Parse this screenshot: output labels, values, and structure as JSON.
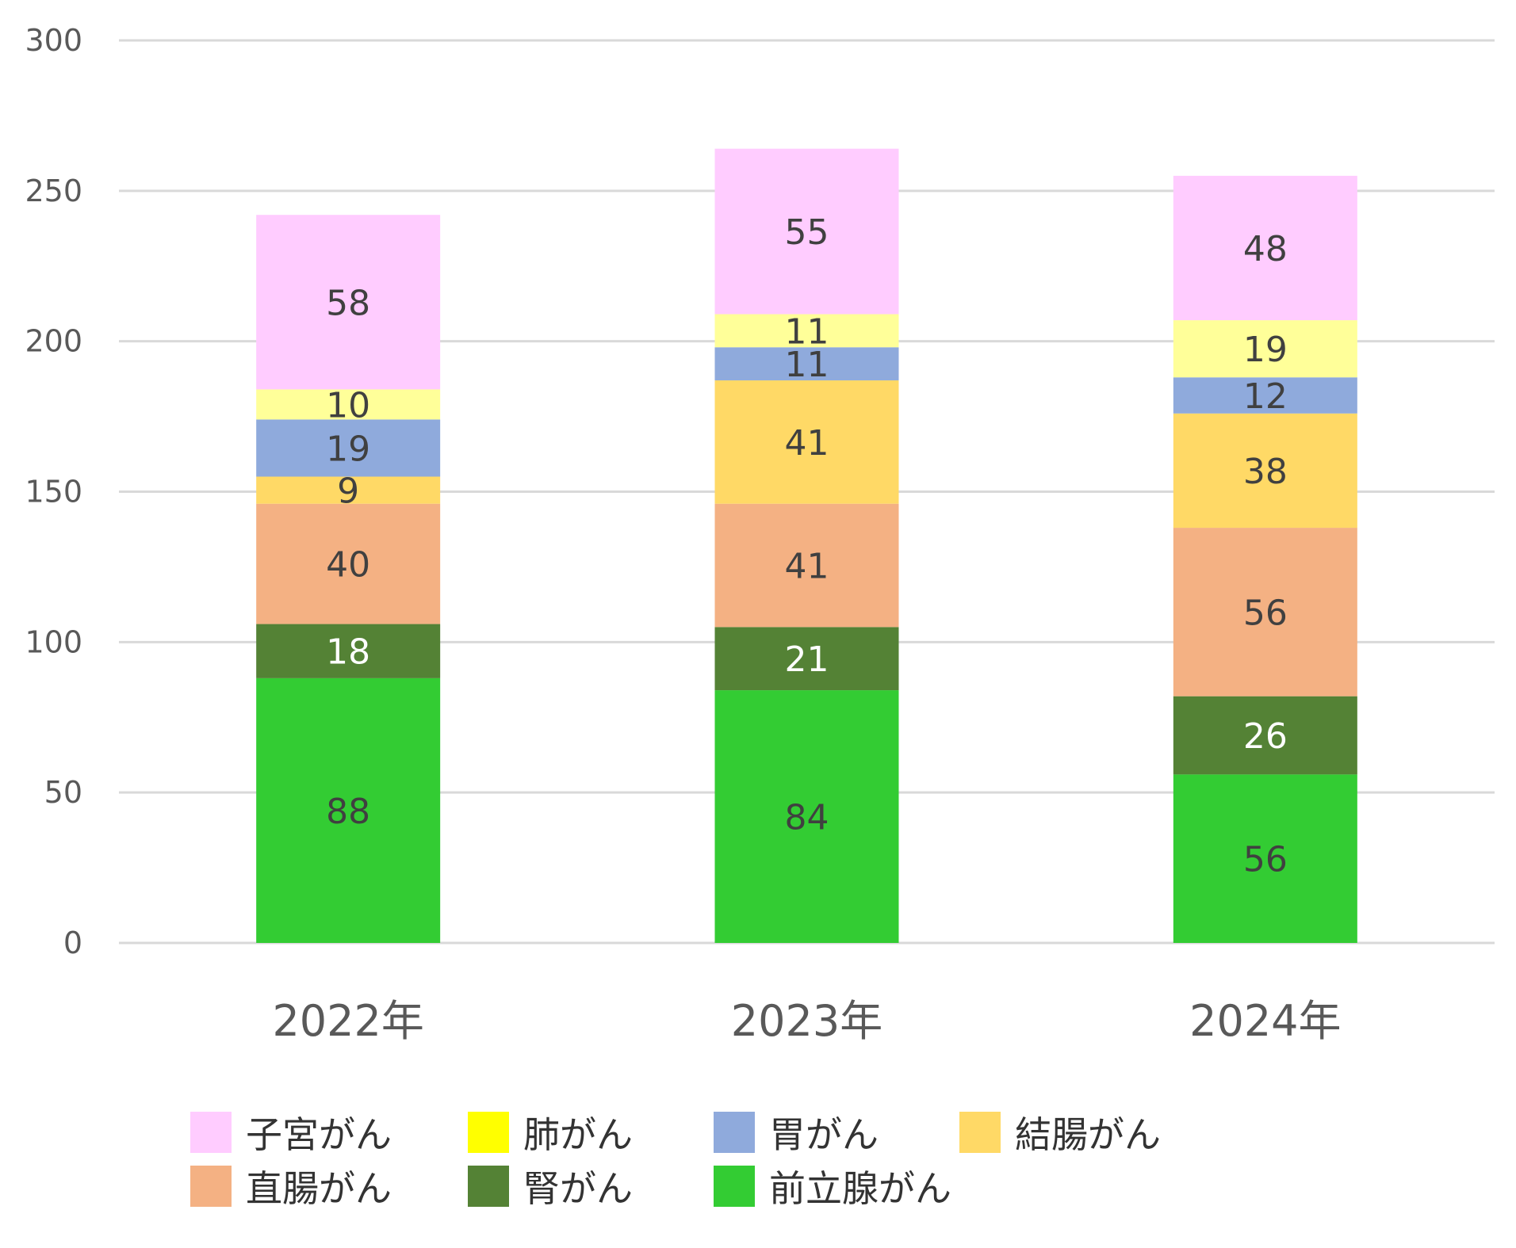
{
  "chart_data": {
    "type": "bar",
    "stacked": true,
    "categories": [
      "2022年",
      "2023年",
      "2024年"
    ],
    "series": [
      {
        "name": "前立腺がん",
        "color": "#33CC33",
        "label_color": "#404040",
        "values": [
          88,
          84,
          56
        ]
      },
      {
        "name": "腎がん",
        "color": "#548235",
        "label_color": "#FFFFFF",
        "values": [
          18,
          21,
          26
        ]
      },
      {
        "name": "直腸がん",
        "color": "#F4B183",
        "label_color": "#404040",
        "values": [
          40,
          41,
          56
        ]
      },
      {
        "name": "結腸がん",
        "color": "#FFD966",
        "label_color": "#404040",
        "values": [
          9,
          41,
          38
        ]
      },
      {
        "name": "胃がん",
        "color": "#8FAADC",
        "label_color": "#404040",
        "values": [
          19,
          11,
          12
        ]
      },
      {
        "name": "肺がん",
        "color": "#FFFF99",
        "label_color": "#404040",
        "values": [
          10,
          11,
          19
        ]
      },
      {
        "name": "子宮がん",
        "color": "#FFCCFF",
        "label_color": "#404040",
        "values": [
          58,
          55,
          48
        ]
      }
    ],
    "ylim": [
      0,
      300
    ],
    "yticks": [
      0,
      50,
      100,
      150,
      200,
      250,
      300
    ],
    "grid": true,
    "legend_position": "bottom",
    "legend_order": [
      "子宮がん",
      "肺がん",
      "胃がん",
      "結腸がん",
      "直腸がん",
      "腎がん",
      "前立腺がん"
    ],
    "legend_swatch_colors": {
      "肺がん": "#FFFF00"
    },
    "title": "",
    "xlabel": "",
    "ylabel": ""
  }
}
